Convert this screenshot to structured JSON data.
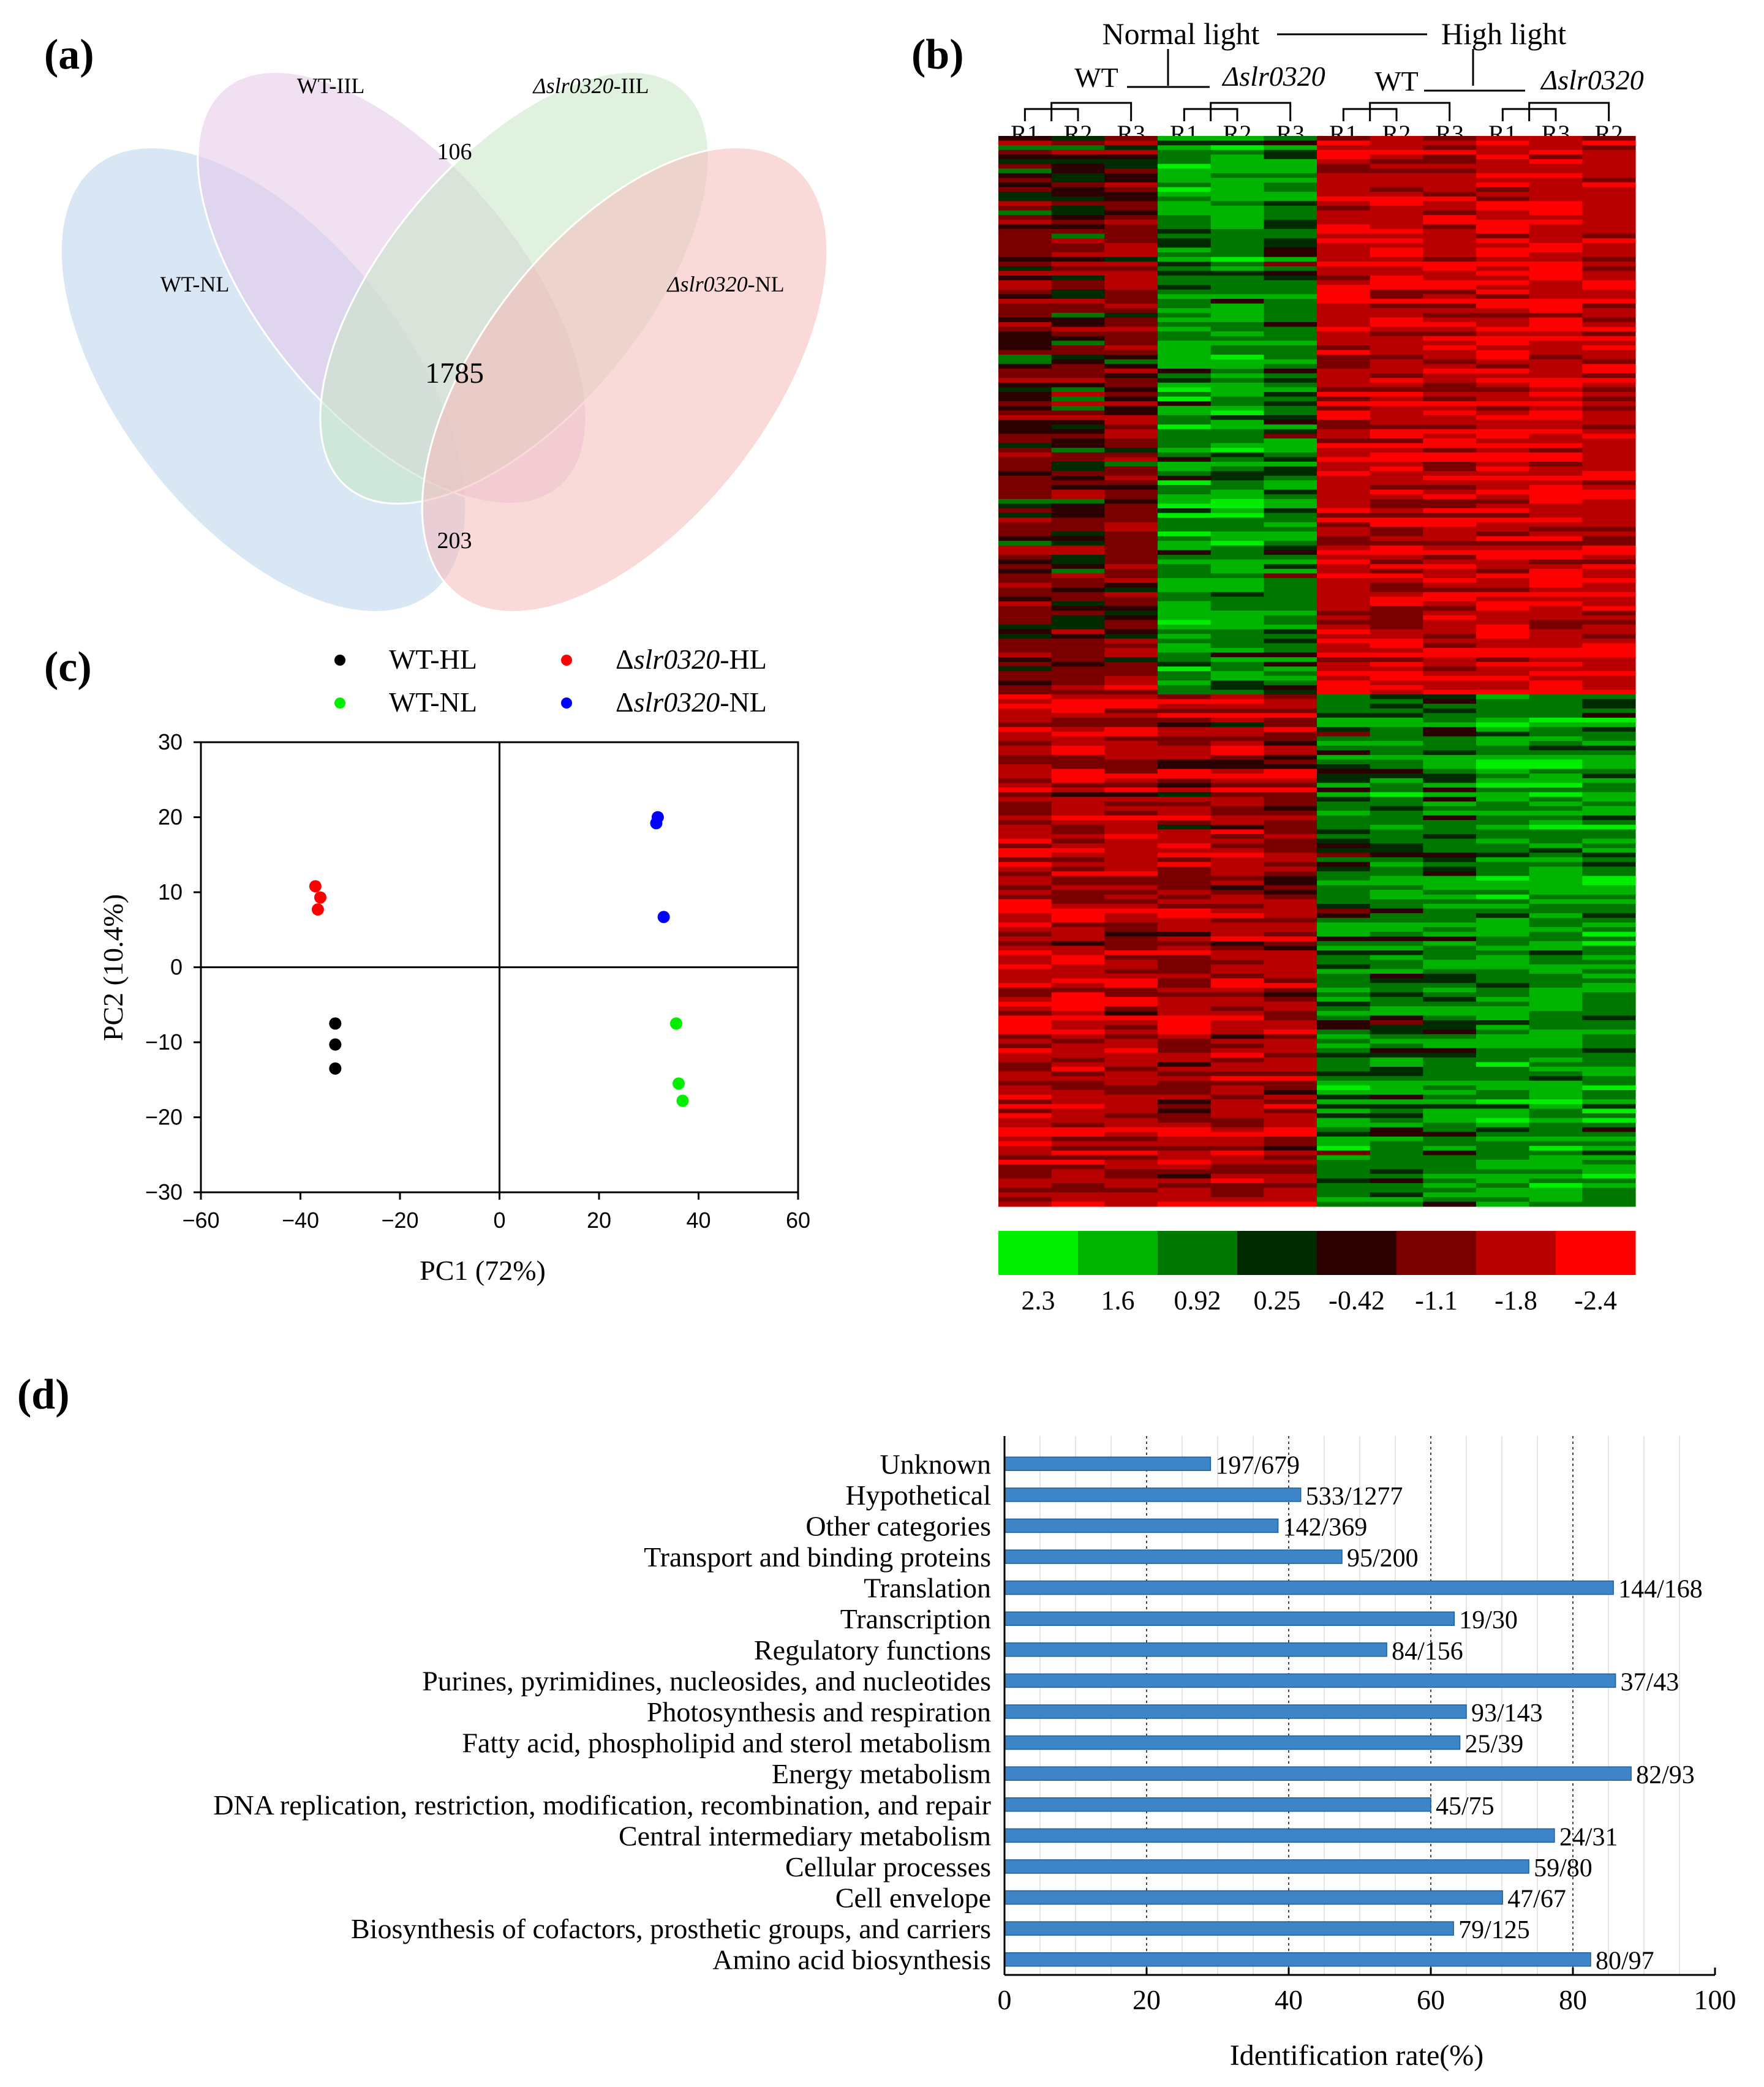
{
  "panel_labels": {
    "a": "(a)",
    "b": "(b)",
    "c": "(c)",
    "d": "(d)"
  },
  "chart_data": [
    {
      "type": "venn",
      "sets": [
        "WT-NL",
        "WT-IIL",
        "Δslr0320-IIL",
        "Δslr0320-NL"
      ],
      "set_labels": [
        {
          "italic": "",
          "rest": "WT-NL"
        },
        {
          "italic": "",
          "rest": "WT-IIL"
        },
        {
          "italic": "Δslr0320",
          "rest": "-IIL"
        },
        {
          "italic": "Δslr0320",
          "rest": "-NL"
        }
      ],
      "counts": {
        "center": "1785",
        "top": "106",
        "bottom": "203"
      },
      "colors": [
        "#b9d3ec",
        "#e3c7e7",
        "#c6e6c4",
        "#f5b9b9"
      ]
    },
    {
      "type": "heatmap",
      "title_normal": "Normal light",
      "title_high": "High light",
      "group_wt": "WT",
      "group_mut": "Δslr0320",
      "columns": [
        "R1",
        "R2",
        "R3",
        "R1",
        "R2",
        "R3",
        "R1",
        "R2",
        "R3",
        "R1",
        "R3",
        "R2"
      ],
      "legend_colors": [
        "#00ee00",
        "#00b400",
        "#007800",
        "#002a00",
        "#2a0000",
        "#7a0000",
        "#b80000",
        "#ff0000"
      ],
      "legend_ticks": [
        "2.3",
        "1.6",
        "0.92",
        "0.25",
        "-0.42",
        "-1.1",
        "-1.8",
        "-2.4"
      ]
    },
    {
      "type": "scatter",
      "xlabel": "PC1 (72%)",
      "ylabel": "PC2 (10.4%)",
      "xlim": [
        -60,
        60
      ],
      "ylim": [
        -30,
        30
      ],
      "xticks": [
        "−60",
        "−40",
        "−20",
        "0",
        "20",
        "40",
        "60"
      ],
      "yticks": [
        "30",
        "20",
        "10",
        "0",
        "−10",
        "−20",
        "−30"
      ],
      "legend": [
        {
          "italic": "",
          "text": "WT-HL",
          "color": "#000000"
        },
        {
          "italic": "slr0320",
          "text": "-HL",
          "prefix": "Δ",
          "color": "#ff0000"
        },
        {
          "italic": "",
          "text": "WT-NL",
          "color": "#00ee00"
        },
        {
          "italic": "slr0320",
          "text": "-NL",
          "prefix": "Δ",
          "color": "#0000ff"
        }
      ],
      "series": [
        {
          "name": "WT-HL",
          "color": "#000000",
          "points": [
            [
              -33,
              -7.5
            ],
            [
              -33,
              -10.3
            ],
            [
              -33,
              -13.5
            ]
          ]
        },
        {
          "name": "Δslr0320-HL",
          "color": "#ff0000",
          "points": [
            [
              -37,
              10.8
            ],
            [
              -36,
              9.3
            ],
            [
              -36.5,
              7.7
            ]
          ]
        },
        {
          "name": "WT-NL",
          "color": "#00ee00",
          "points": [
            [
              35.5,
              -7.5
            ],
            [
              36,
              -15.5
            ],
            [
              36.8,
              -17.8
            ]
          ]
        },
        {
          "name": "Δslr0320-NL",
          "color": "#0000ff",
          "points": [
            [
              31.8,
              20
            ],
            [
              31.5,
              19.2
            ],
            [
              33,
              6.7
            ]
          ]
        }
      ]
    },
    {
      "type": "bar",
      "orientation": "horizontal",
      "xlabel": "Identification rate(%)",
      "xlim": [
        0,
        100
      ],
      "xticks": [
        "0",
        "20",
        "40",
        "60",
        "80",
        "100"
      ],
      "bar_color": "#3d85c6",
      "categories": [
        "Unknown",
        "Hypothetical",
        "Other categories",
        "Transport and binding proteins",
        "Translation",
        "Transcription",
        "Regulatory functions",
        "Purines, pyrimidines, nucleosides, and nucleotides",
        "Photosynthesis and respiration",
        "Fatty acid, phospholipid and sterol metabolism",
        "Energy metabolism",
        "DNA replication, restriction, modification, recombination, and repair",
        "Central intermediary metabolism",
        "Cellular processes",
        "Cell envelope",
        "Biosynthesis of cofactors, prosthetic groups, and carriers",
        "Amino acid biosynthesis"
      ],
      "values": [
        29.0,
        41.7,
        38.5,
        47.5,
        85.7,
        63.3,
        53.8,
        86.0,
        65.0,
        64.1,
        88.2,
        60.0,
        77.4,
        73.8,
        70.1,
        63.2,
        82.5
      ],
      "labels": [
        "197/679",
        "533/1277",
        "142/369",
        "95/200",
        "144/168",
        "19/30",
        "84/156",
        "37/43",
        "93/143",
        "25/39",
        "82/93",
        "45/75",
        "24/31",
        "59/80",
        "47/67",
        "79/125",
        "80/97"
      ]
    }
  ]
}
